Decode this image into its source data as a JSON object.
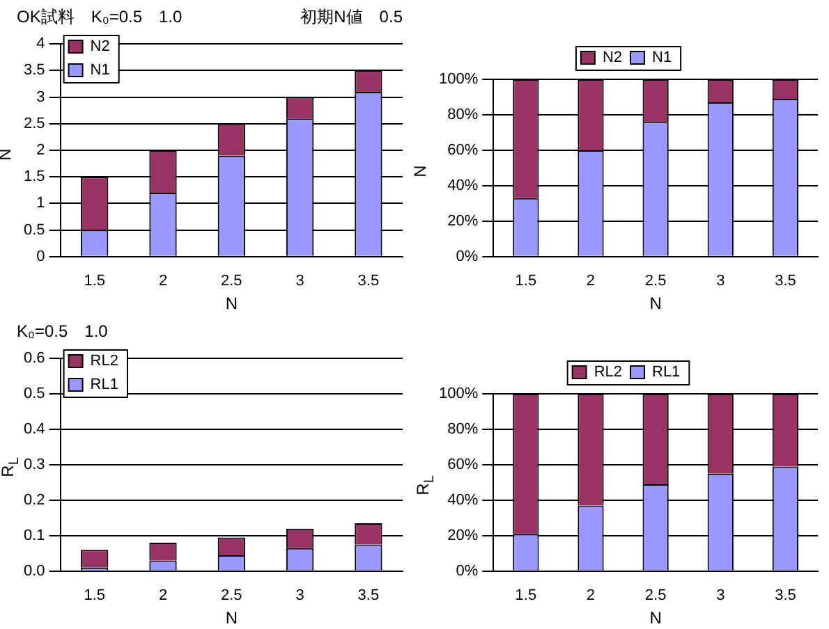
{
  "chart_data": [
    {
      "type": "bar",
      "title": "OK試料　K₀=0.5　1.0",
      "subtitle": "初期N値　0.5",
      "xlabel": "N",
      "ylabel": "N",
      "categories": [
        "1.5",
        "2",
        "2.5",
        "3",
        "3.5"
      ],
      "stacked": true,
      "series": [
        {
          "name": "N1",
          "color": "#9999ff",
          "values": [
            0.5,
            1.2,
            1.9,
            2.6,
            3.1
          ]
        },
        {
          "name": "N2",
          "color": "#993366",
          "values": [
            1.0,
            0.8,
            0.6,
            0.4,
            0.4
          ]
        }
      ],
      "ylim": [
        0,
        4
      ],
      "yticks": [
        0,
        0.5,
        1,
        1.5,
        2,
        2.5,
        3,
        3.5,
        4
      ],
      "grid": "y",
      "legend": "top left"
    },
    {
      "type": "bar",
      "xlabel": "N",
      "ylabel": "N",
      "categories": [
        "1.5",
        "2",
        "2.5",
        "3",
        "3.5"
      ],
      "stacked": true,
      "series": [
        {
          "name": "N1",
          "color": "#9999ff",
          "values": [
            33,
            60,
            76,
            87,
            89
          ]
        },
        {
          "name": "N2",
          "color": "#993366",
          "values": [
            67,
            40,
            24,
            13,
            11
          ]
        }
      ],
      "ylim": [
        0,
        100
      ],
      "yticks": [
        {
          "value": 0,
          "label": "0%"
        },
        {
          "value": 20,
          "label": "20%"
        },
        {
          "value": 40,
          "label": "40%"
        },
        {
          "value": 60,
          "label": "60%"
        },
        {
          "value": 80,
          "label": "80%"
        },
        {
          "value": 100,
          "label": "100%"
        }
      ],
      "grid": "y",
      "legend": "top"
    },
    {
      "type": "bar",
      "title": "K₀=0.5　1.0",
      "xlabel": "N",
      "ylabel": "R$_{L}$",
      "categories": [
        "1.5",
        "2",
        "2.5",
        "3",
        "3.5"
      ],
      "stacked": true,
      "series": [
        {
          "name": "RL1",
          "color": "#9999ff",
          "values": [
            0.01,
            0.03,
            0.045,
            0.065,
            0.075
          ]
        },
        {
          "name": "RL2",
          "color": "#993366",
          "values": [
            0.05,
            0.05,
            0.05,
            0.055,
            0.06
          ]
        }
      ],
      "ylim": [
        0,
        0.6
      ],
      "yticks": [
        {
          "value": 0,
          "label": "0.0"
        },
        0.1,
        0.2,
        0.3,
        0.4,
        0.5,
        0.6
      ],
      "grid": "y",
      "legend": "top left"
    },
    {
      "type": "bar",
      "xlabel": "N",
      "ylabel": "R$_{L}$",
      "categories": [
        "1.5",
        "2",
        "2.5",
        "3",
        "3.5"
      ],
      "stacked": true,
      "series": [
        {
          "name": "RL1",
          "color": "#9999ff",
          "values": [
            21,
            37,
            49,
            55,
            59
          ]
        },
        {
          "name": "RL2",
          "color": "#993366",
          "values": [
            79,
            63,
            51,
            45,
            41
          ]
        }
      ],
      "ylim": [
        0,
        100
      ],
      "yticks": [
        {
          "value": 0,
          "label": "0%"
        },
        {
          "value": 20,
          "label": "20%"
        },
        {
          "value": 40,
          "label": "40%"
        },
        {
          "value": 60,
          "label": "60%"
        },
        {
          "value": 80,
          "label": "80%"
        },
        {
          "value": 100,
          "label": "100%"
        }
      ],
      "grid": "y",
      "legend": "top"
    }
  ]
}
